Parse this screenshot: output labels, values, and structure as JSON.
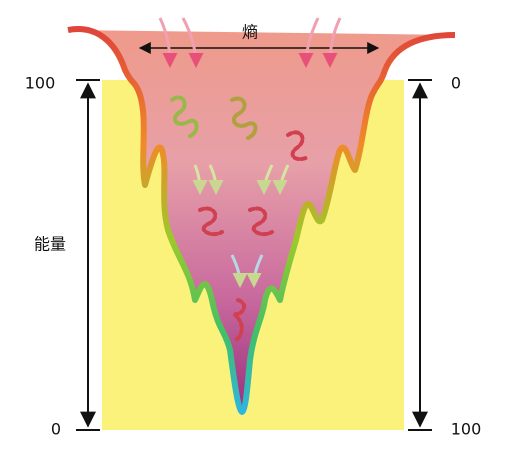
{
  "labels": {
    "entropy": "熵",
    "energy": "能量"
  },
  "left_axis": {
    "top": "100",
    "bottom": "0"
  },
  "right_axis": {
    "top": "0",
    "bottom": "100"
  }
}
